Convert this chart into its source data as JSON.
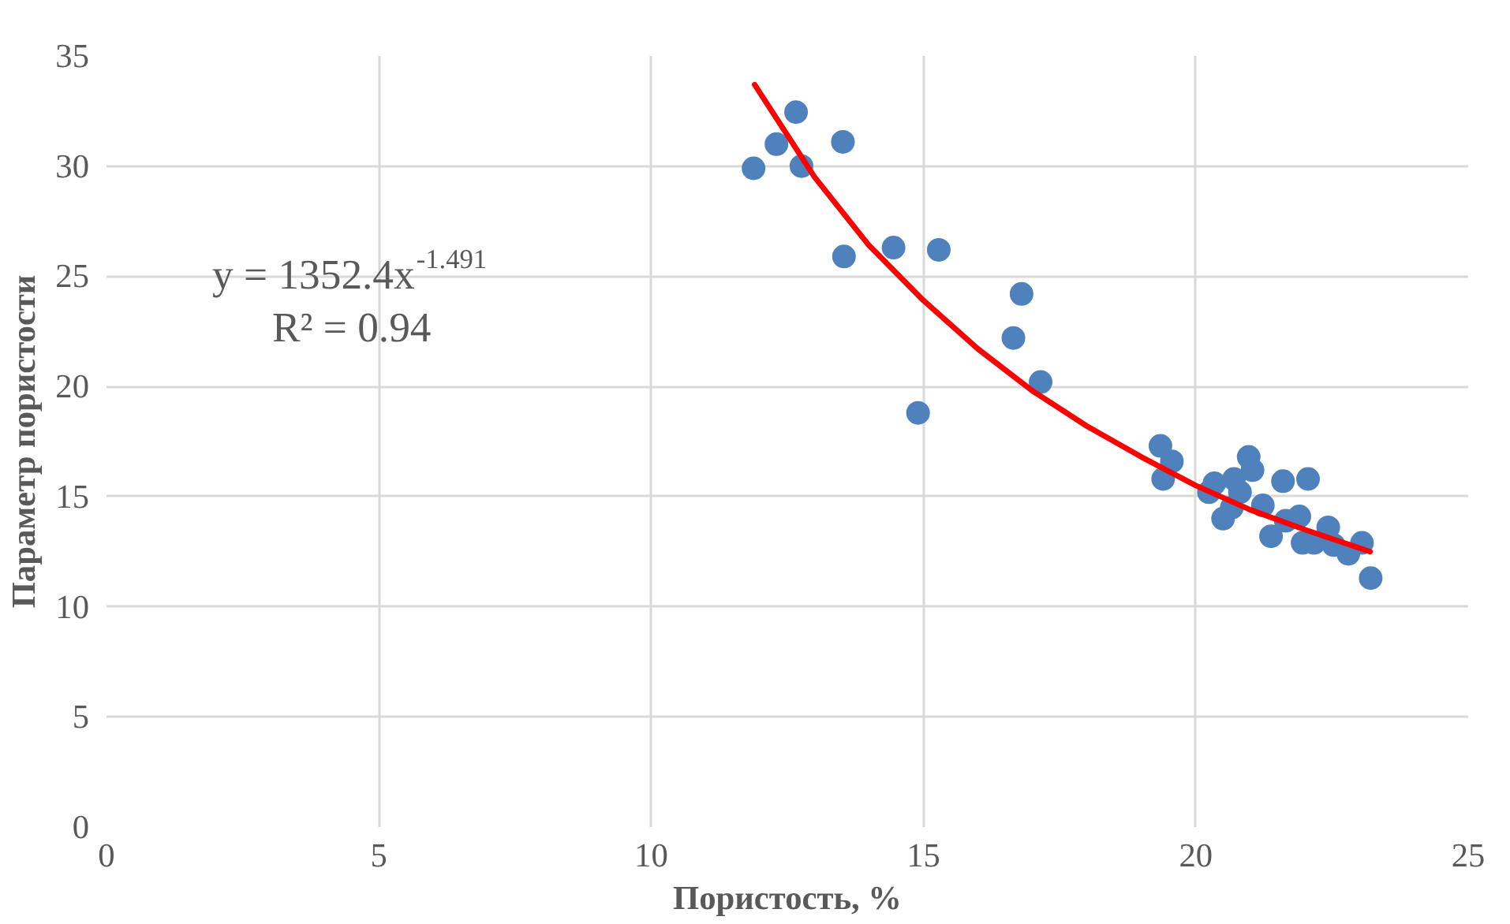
{
  "chart_data": {
    "type": "scatter",
    "xlabel": "Пористость, %",
    "ylabel": "Параметр пористости",
    "xlim": [
      0,
      25
    ],
    "xticks": [
      0,
      5,
      10,
      15,
      20,
      25
    ],
    "ylim": [
      0,
      35
    ],
    "yticks": [
      0,
      5,
      10,
      15,
      20,
      25,
      30,
      35
    ],
    "grid": true,
    "marker": "circle",
    "series": [
      {
        "color": "#4f81bd",
        "x": [
          11.88,
          12.3,
          12.66,
          12.76,
          13.52,
          13.54,
          14.45,
          15.28,
          16.8,
          16.65,
          17.15,
          14.9,
          19.35,
          19.56,
          19.4,
          20.97,
          21.04,
          21.6,
          22.06,
          20.34,
          20.24,
          20.7,
          20.5,
          20.66,
          20.81,
          21.23,
          21.38,
          21.65,
          21.9,
          21.96,
          22.17,
          22.43,
          22.53,
          23.05,
          23.21,
          22.8
        ],
        "values": [
          29.9,
          31.0,
          32.45,
          30.0,
          31.1,
          25.9,
          26.3,
          26.2,
          24.2,
          22.2,
          20.2,
          18.8,
          17.3,
          16.6,
          15.8,
          16.8,
          16.2,
          15.7,
          15.8,
          15.6,
          15.2,
          15.8,
          14.0,
          14.5,
          15.2,
          14.6,
          13.2,
          13.9,
          14.1,
          12.9,
          12.9,
          13.6,
          12.8,
          12.9,
          11.3,
          12.4
        ]
      },
      {
        "type": "line",
        "color": "#ff0000",
        "marker": "none",
        "x": [
          11.9,
          13,
          14,
          15,
          16,
          17,
          18,
          19,
          20,
          21,
          22,
          23.2
        ],
        "values": [
          33.7,
          29.5,
          26.4,
          23.9,
          21.7,
          19.8,
          18.2,
          16.8,
          15.5,
          14.4,
          13.5,
          12.5
        ]
      }
    ],
    "annotations": [
      "y = 1352.4x$^{-1.491}$",
      "R² = 0.94"
    ]
  }
}
